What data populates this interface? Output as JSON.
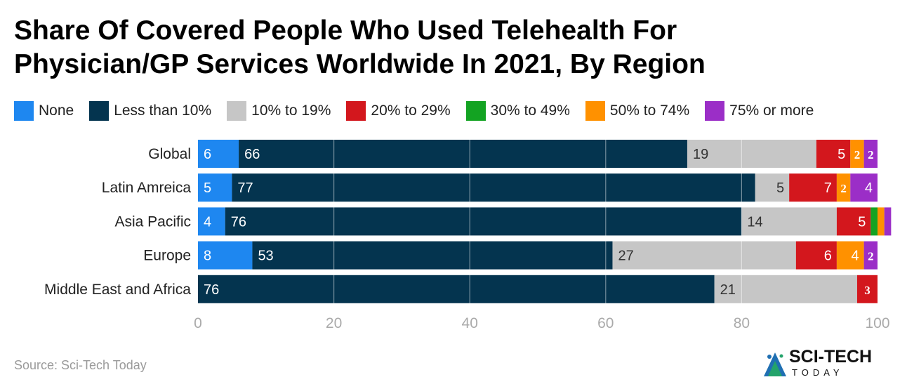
{
  "title_lines": [
    "Share Of Covered People Who Used Telehealth For",
    "Physician/GP Services Worldwide In 2021, By Region"
  ],
  "source": "Source: Sci-Tech Today",
  "logo": {
    "name": "SCI-TECH",
    "sub": "TODAY"
  },
  "colors": {
    "None": "#1e87f0",
    "Less than 10%": "#04344f",
    "10% to 19%": "#c6c6c6",
    "20% to 29%": "#d3171d",
    "30% to 49%": "#13a322",
    "50% to 74%": "#ff9100",
    "75% or more": "#9b2ec7"
  },
  "chart_data": {
    "type": "bar",
    "orientation": "horizontal",
    "stacked": true,
    "title": "Share Of Covered People Who Used Telehealth For Physician/GP Services Worldwide In 2021, By Region",
    "categories": [
      "Global",
      "Latin Amreica",
      "Asia Pacific",
      "Europe",
      "Middle East and Africa"
    ],
    "series": [
      {
        "name": "None",
        "values": [
          6,
          5,
          4,
          8,
          0
        ]
      },
      {
        "name": "Less than 10%",
        "values": [
          66,
          77,
          76,
          53,
          76
        ]
      },
      {
        "name": "10% to 19%",
        "values": [
          19,
          5,
          14,
          27,
          21
        ]
      },
      {
        "name": "20% to 29%",
        "values": [
          5,
          7,
          5,
          6,
          3
        ]
      },
      {
        "name": "30% to 49%",
        "values": [
          0,
          0,
          1,
          0,
          0
        ]
      },
      {
        "name": "50% to 74%",
        "values": [
          2,
          2,
          1,
          4,
          0
        ]
      },
      {
        "name": "75% or more",
        "values": [
          2,
          4,
          1,
          2,
          0
        ]
      }
    ],
    "xlim": [
      0,
      100
    ],
    "xticks": [
      0,
      20,
      40,
      60,
      80,
      100
    ],
    "xlabel": "",
    "ylabel": "",
    "grid": true,
    "legend_position": "top"
  }
}
